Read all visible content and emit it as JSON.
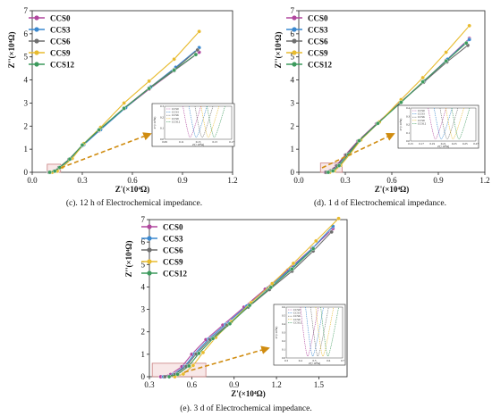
{
  "colors": {
    "CCS0": "#b0479e",
    "CCS3": "#3a88cf",
    "CCS6": "#6e6e6e",
    "CCS9": "#e8bb2f",
    "CCS12": "#3d9a5d",
    "arrow": "#d08c10",
    "zoom_box": "#c98080",
    "inset_dash": "#000000"
  },
  "chart_data": [
    {
      "type": "line",
      "caption": "(c). 12 h of Electrochemical impedance.",
      "xlabel": "Z'(×10⁴Ω)",
      "ylabel": "Z''(×10⁴Ω)",
      "xlim": [
        0.0,
        1.2
      ],
      "ylim": [
        0,
        7
      ],
      "xticks": [
        "0.0",
        "0.3",
        "0.6",
        "0.9",
        "1.2"
      ],
      "yticks": [
        "0",
        "1",
        "2",
        "3",
        "4",
        "5",
        "6",
        "7"
      ],
      "legend": [
        "CCS0",
        "CCS3",
        "CCS6",
        "CCS9",
        "CCS12"
      ],
      "legend_position": "top-left",
      "zoom_region": {
        "x": [
          0.09,
          0.17
        ],
        "y": [
          0,
          0.35
        ]
      },
      "series": [
        {
          "name": "CCS0",
          "x": [
            0.1,
            0.13,
            0.16,
            0.22,
            0.3,
            0.4,
            0.55,
            0.7,
            0.85,
            1.0
          ],
          "y": [
            0.0,
            0.04,
            0.2,
            0.55,
            1.15,
            1.8,
            2.75,
            3.6,
            4.4,
            5.2
          ]
        },
        {
          "name": "CCS3",
          "x": [
            0.11,
            0.14,
            0.17,
            0.23,
            0.31,
            0.41,
            0.56,
            0.71,
            0.86,
            1.0
          ],
          "y": [
            0.0,
            0.05,
            0.22,
            0.58,
            1.2,
            1.85,
            2.8,
            3.7,
            4.55,
            5.4
          ]
        },
        {
          "name": "CCS6",
          "x": [
            0.1,
            0.13,
            0.16,
            0.22,
            0.3,
            0.4,
            0.55,
            0.7,
            0.85,
            0.99
          ],
          "y": [
            0.0,
            0.05,
            0.21,
            0.56,
            1.17,
            1.83,
            2.78,
            3.65,
            4.45,
            5.3
          ]
        },
        {
          "name": "CCS9",
          "x": [
            0.12,
            0.15,
            0.18,
            0.24,
            0.31,
            0.41,
            0.55,
            0.7,
            0.85,
            1.0
          ],
          "y": [
            0.0,
            0.05,
            0.22,
            0.6,
            1.25,
            1.95,
            3.0,
            3.95,
            4.9,
            6.1
          ]
        },
        {
          "name": "CCS12",
          "x": [
            0.105,
            0.135,
            0.165,
            0.225,
            0.3,
            0.4,
            0.55,
            0.7,
            0.85,
            0.98
          ],
          "y": [
            0.0,
            0.05,
            0.21,
            0.57,
            1.18,
            1.84,
            2.77,
            3.63,
            4.42,
            5.1
          ]
        }
      ],
      "inset": {
        "xticks": [
          "0.09",
          "0.11",
          "0.13",
          "0.15",
          "0.17"
        ],
        "yticks": [
          "0.0",
          "0.1",
          "0.2",
          "0.3"
        ],
        "xlabel": "Z'(×10⁴Ω)",
        "ylabel": "Z''(×10⁴Ω)",
        "legend": [
          "CCS0",
          "CCS3",
          "CCS6",
          "CCS9",
          "CCS12"
        ]
      }
    },
    {
      "type": "line",
      "caption": "(d). 1 d of Electrochemical impedance.",
      "xlabel": "Z'(×10⁴Ω)",
      "ylabel": "Z''(×10⁴Ω)",
      "xlim": [
        0.0,
        1.2
      ],
      "ylim": [
        0,
        7
      ],
      "xticks": [
        "0.0",
        "0.3",
        "0.6",
        "0.9",
        "1.2"
      ],
      "yticks": [
        "0",
        "1",
        "2",
        "3",
        "4",
        "5",
        "6",
        "7"
      ],
      "legend": [
        "CCS0",
        "CCS3",
        "CCS6",
        "CCS9",
        "CCS12"
      ],
      "legend_position": "top-left",
      "zoom_region": {
        "x": [
          0.14,
          0.28
        ],
        "y": [
          0,
          0.4
        ]
      },
      "series": [
        {
          "name": "CCS0",
          "x": [
            0.17,
            0.2,
            0.24,
            0.3,
            0.38,
            0.5,
            0.65,
            0.8,
            0.95,
            1.1
          ],
          "y": [
            0.0,
            0.06,
            0.28,
            0.75,
            1.35,
            2.1,
            3.0,
            3.9,
            4.85,
            5.8
          ]
        },
        {
          "name": "CCS3",
          "x": [
            0.18,
            0.21,
            0.25,
            0.31,
            0.39,
            0.51,
            0.66,
            0.81,
            0.96,
            1.1
          ],
          "y": [
            0.0,
            0.06,
            0.29,
            0.76,
            1.37,
            2.13,
            3.05,
            3.95,
            4.9,
            5.75
          ]
        },
        {
          "name": "CCS6",
          "x": [
            0.175,
            0.205,
            0.245,
            0.305,
            0.385,
            0.505,
            0.655,
            0.805,
            0.955,
            1.09
          ],
          "y": [
            0.0,
            0.06,
            0.28,
            0.75,
            1.36,
            2.11,
            3.02,
            3.9,
            4.78,
            5.5
          ]
        },
        {
          "name": "CCS9",
          "x": [
            0.2,
            0.23,
            0.27,
            0.33,
            0.4,
            0.52,
            0.66,
            0.8,
            0.95,
            1.1
          ],
          "y": [
            0.0,
            0.06,
            0.3,
            0.78,
            1.4,
            2.18,
            3.15,
            4.1,
            5.2,
            6.35
          ]
        },
        {
          "name": "CCS12",
          "x": [
            0.19,
            0.22,
            0.26,
            0.32,
            0.39,
            0.51,
            0.66,
            0.8,
            0.95,
            1.08
          ],
          "y": [
            0.0,
            0.06,
            0.29,
            0.77,
            1.37,
            2.12,
            3.03,
            3.92,
            4.82,
            5.6
          ]
        }
      ],
      "inset": {
        "xticks": [
          "0.15",
          "0.17",
          "0.19",
          "0.21",
          "0.23",
          "0.25",
          "0.27"
        ],
        "yticks": [
          "0.0",
          "0.1",
          "0.2",
          "0.3",
          "0.4"
        ],
        "xlabel": "Z'(×10⁴Ω)",
        "ylabel": "Z''(×10⁴Ω)",
        "legend": [
          "CCS0",
          "CCS3",
          "CCS6",
          "CCS9",
          "CCS12"
        ]
      }
    },
    {
      "type": "line",
      "caption": "(e). 3 d of Electrochemical impedance.",
      "xlabel": "Z'(×10⁴Ω)",
      "ylabel": "Z''(×10⁴Ω)",
      "xlim": [
        0.3,
        1.7
      ],
      "ylim": [
        0,
        7
      ],
      "xticks": [
        "0.3",
        "0.6",
        "0.9",
        "1.2",
        "1.5"
      ],
      "yticks": [
        "0",
        "1",
        "2",
        "3",
        "4",
        "5",
        "6",
        "7"
      ],
      "legend": [
        "CCS0",
        "CCS3",
        "CCS6",
        "CCS9",
        "CCS12"
      ],
      "legend_position": "top-left",
      "zoom_region": {
        "x": [
          0.32,
          0.7
        ],
        "y": [
          0,
          0.6
        ]
      },
      "series": [
        {
          "name": "CCS0",
          "x": [
            0.38,
            0.45,
            0.53,
            0.6,
            0.7,
            0.82,
            0.97,
            1.12,
            1.28,
            1.45,
            1.6
          ],
          "y": [
            0.0,
            0.1,
            0.45,
            1.0,
            1.65,
            2.3,
            3.1,
            3.9,
            4.75,
            5.7,
            6.6
          ]
        },
        {
          "name": "CCS3",
          "x": [
            0.4,
            0.47,
            0.55,
            0.62,
            0.72,
            0.84,
            0.99,
            1.14,
            1.3,
            1.46,
            1.6
          ],
          "y": [
            0.0,
            0.1,
            0.46,
            1.02,
            1.68,
            2.33,
            3.15,
            3.95,
            4.8,
            5.75,
            6.7
          ]
        },
        {
          "name": "CCS6",
          "x": [
            0.41,
            0.48,
            0.56,
            0.63,
            0.73,
            0.85,
            1.0,
            1.15,
            1.31,
            1.46,
            1.59
          ],
          "y": [
            0.0,
            0.1,
            0.46,
            1.01,
            1.66,
            2.3,
            3.1,
            3.88,
            4.7,
            5.6,
            6.45
          ]
        },
        {
          "name": "CCS9",
          "x": [
            0.48,
            0.54,
            0.61,
            0.68,
            0.77,
            0.88,
            1.02,
            1.17,
            1.32,
            1.48,
            1.64
          ],
          "y": [
            0.0,
            0.12,
            0.5,
            1.08,
            1.75,
            2.45,
            3.3,
            4.15,
            5.05,
            6.05,
            7.05
          ]
        },
        {
          "name": "CCS12",
          "x": [
            0.44,
            0.5,
            0.58,
            0.65,
            0.75,
            0.87,
            1.01,
            1.16,
            1.31,
            1.46
          ],
          "y": [
            0.0,
            0.11,
            0.48,
            1.04,
            1.7,
            2.36,
            3.18,
            3.98,
            4.8,
            5.7
          ]
        }
      ],
      "inset": {
        "xticks": [
          "0.3",
          "0.4",
          "0.5",
          "0.6",
          "0.7"
        ],
        "yticks": [
          "0.0",
          "0.1",
          "0.2",
          "0.3",
          "0.4",
          "0.5",
          "0.6"
        ],
        "xlabel": "Z'(×10⁴Ω)",
        "ylabel": "Z''(×10⁴Ω)",
        "legend": [
          "CCS0",
          "CCS3",
          "CCS6",
          "CCS9",
          "CCS12"
        ]
      }
    }
  ]
}
